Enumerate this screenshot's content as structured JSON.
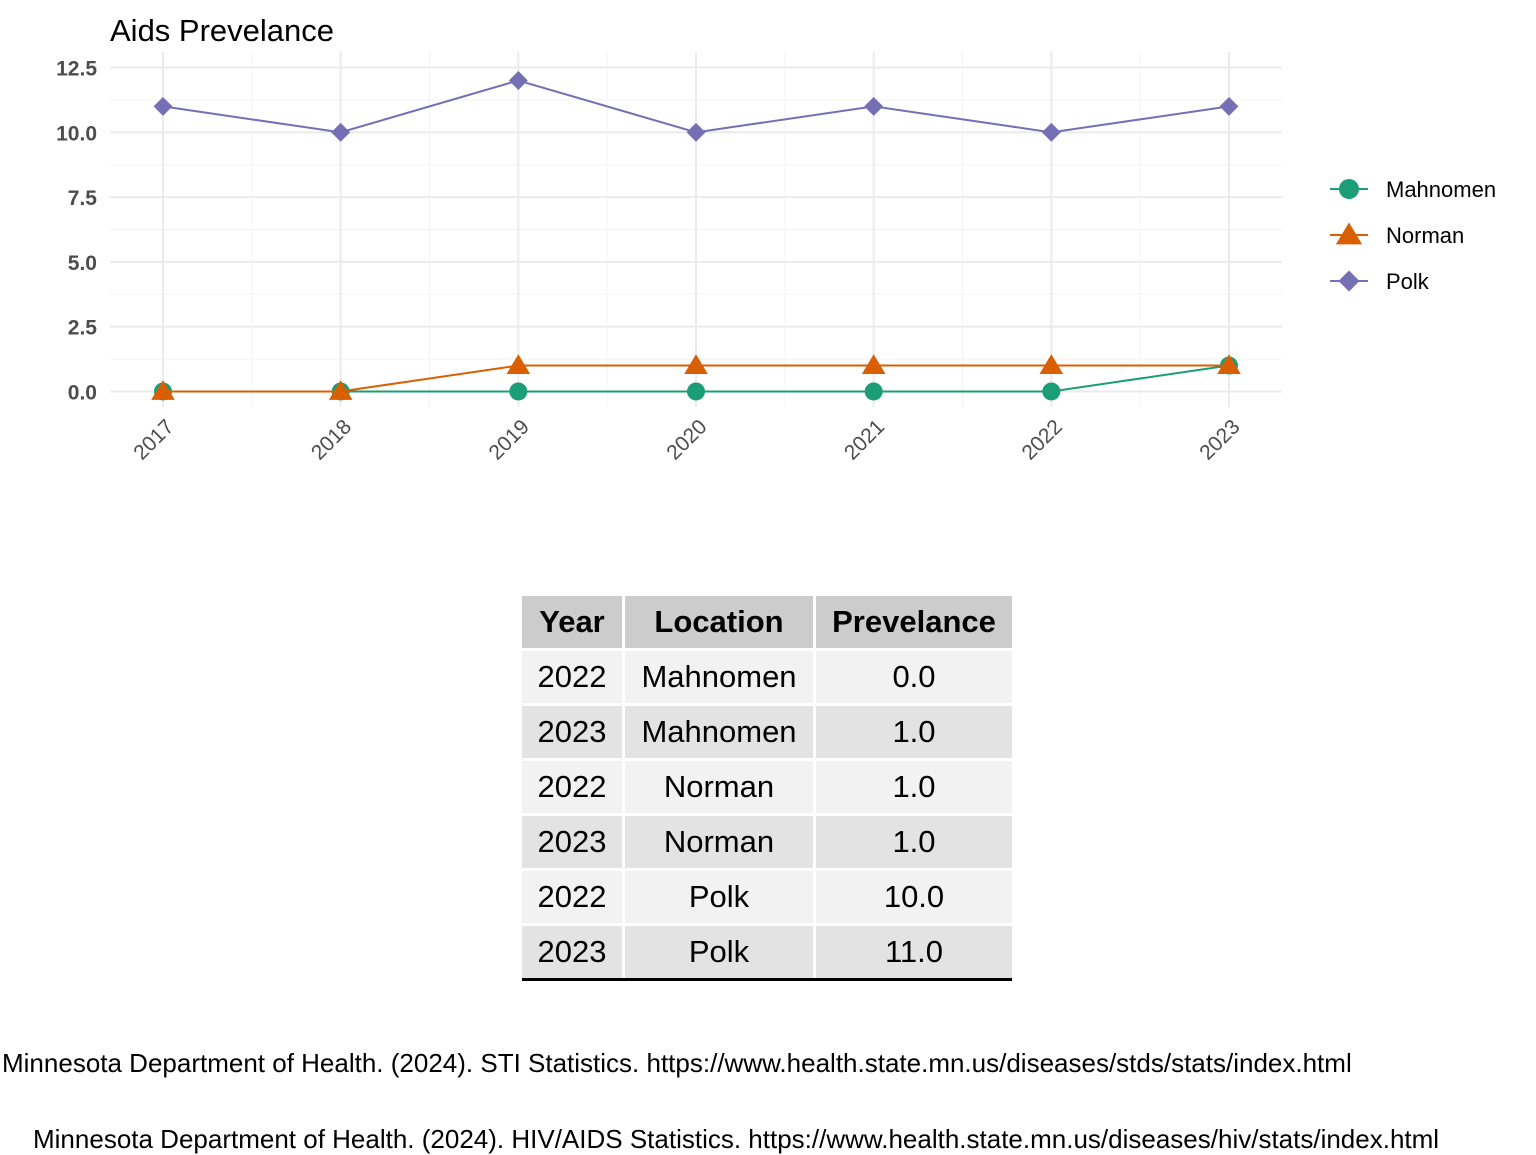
{
  "chart_data": {
    "type": "line",
    "title": "Aids Prevelance",
    "x": [
      "2017",
      "2018",
      "2019",
      "2020",
      "2021",
      "2022",
      "2023"
    ],
    "ylim": [
      -0.6,
      13.1
    ],
    "yticks": [
      "0.0",
      "2.5",
      "5.0",
      "7.5",
      "10.0",
      "12.5"
    ],
    "ytick_values": [
      0,
      2.5,
      5,
      7.5,
      10,
      12.5
    ],
    "grid": true,
    "legend_position": "right",
    "series": [
      {
        "name": "Mahnomen",
        "color": "#1b9e77",
        "marker": "circle",
        "values": [
          0,
          0,
          0,
          0,
          0,
          0,
          1
        ]
      },
      {
        "name": "Norman",
        "color": "#d95f02",
        "marker": "triangle",
        "values": [
          0,
          0,
          1,
          1,
          1,
          1,
          1
        ]
      },
      {
        "name": "Polk",
        "color": "#7570b3",
        "marker": "diamond",
        "values": [
          11,
          10,
          12,
          10,
          11,
          10,
          11
        ]
      }
    ]
  },
  "table": {
    "headers": [
      "Year",
      "Location",
      "Prevelance"
    ],
    "rows": [
      [
        "2022",
        "Mahnomen",
        "0.0"
      ],
      [
        "2023",
        "Mahnomen",
        "1.0"
      ],
      [
        "2022",
        "Norman",
        "1.0"
      ],
      [
        "2023",
        "Norman",
        "1.0"
      ],
      [
        "2022",
        "Polk",
        "10.0"
      ],
      [
        "2023",
        "Polk",
        "11.0"
      ]
    ]
  },
  "sources": [
    "Minnesota Department of Health. (2024). STI Statistics. https://www.health.state.mn.us/diseases/stds/stats/index.html",
    "Minnesota Department of Health. (2024). HIV/AIDS Statistics. https://www.health.state.mn.us/diseases/hiv/stats/index.html"
  ]
}
